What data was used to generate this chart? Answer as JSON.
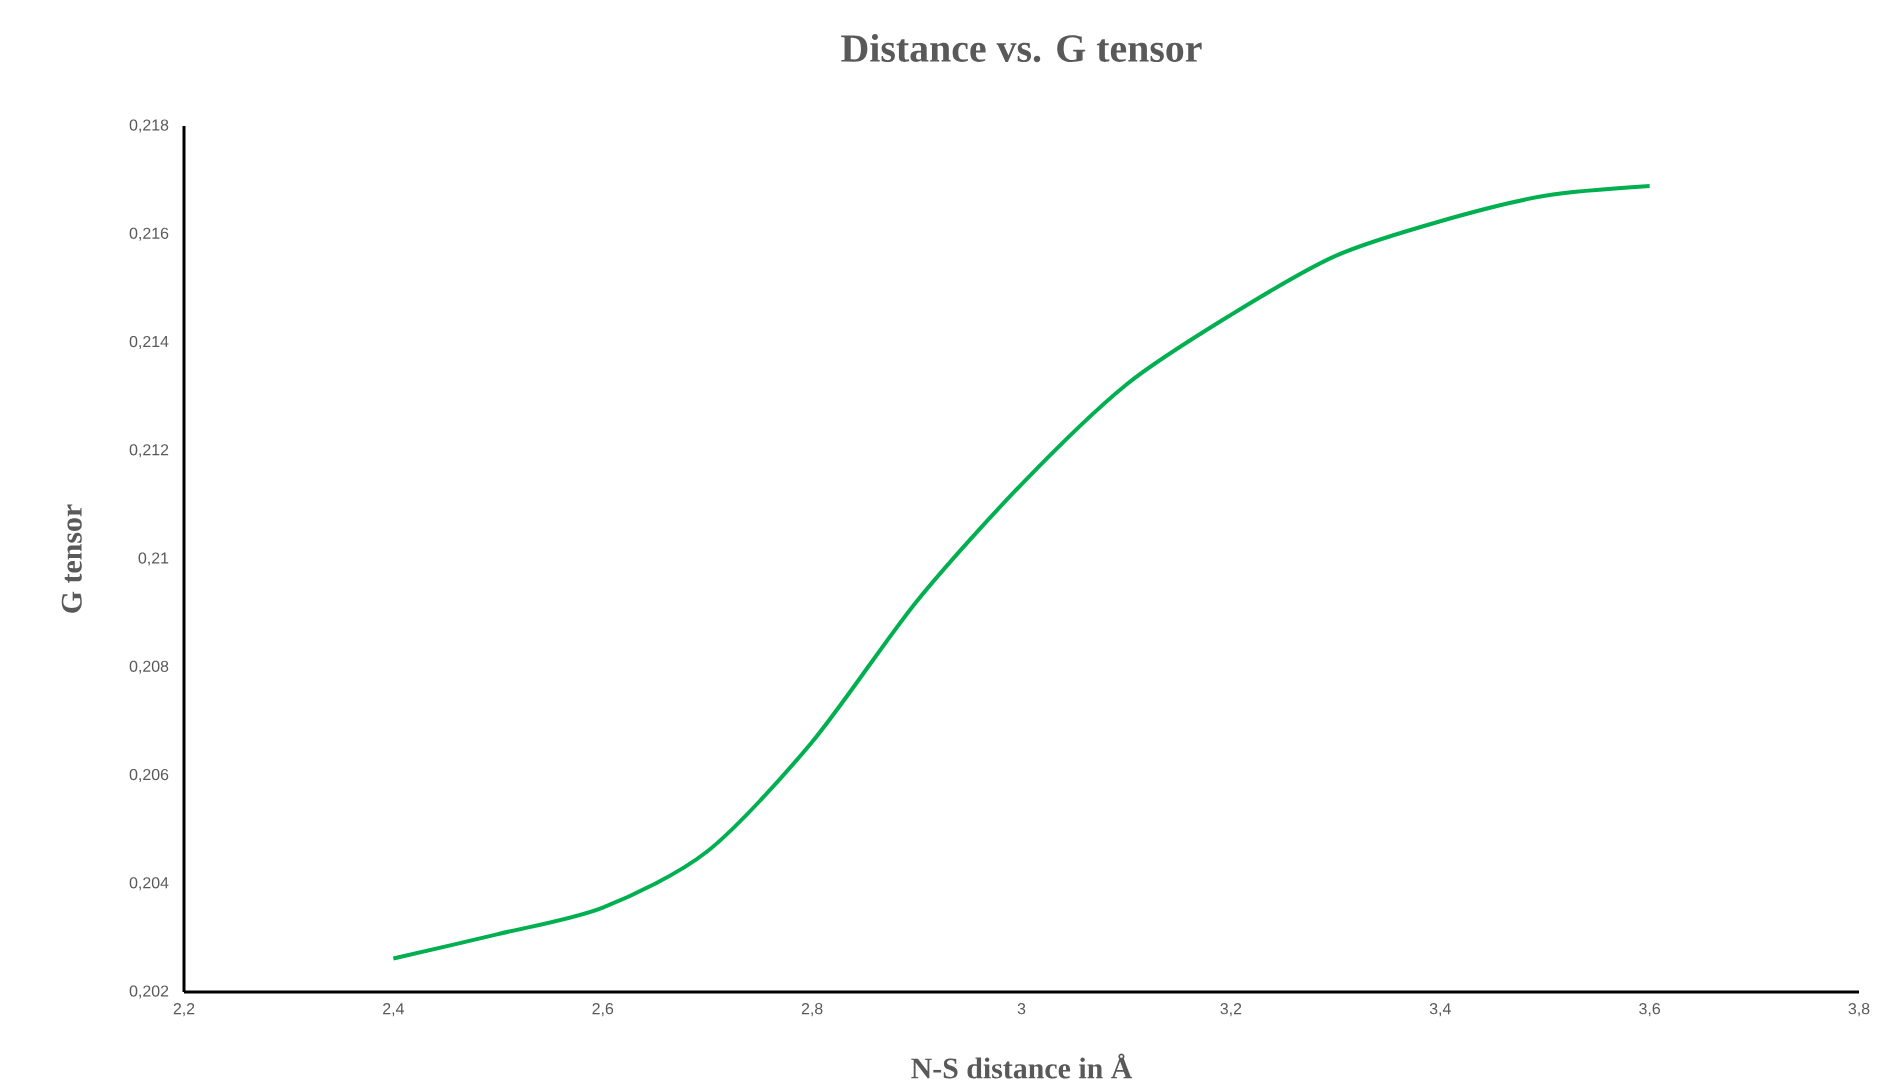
{
  "chart_data": {
    "type": "line",
    "title": "Distance vs. G tensor",
    "xlabel": "N-S distance in Å",
    "ylabel": "G tensor",
    "x": [
      2.4,
      2.5,
      2.6,
      2.7,
      2.8,
      2.9,
      3.0,
      3.1,
      3.2,
      3.3,
      3.4,
      3.5,
      3.6
    ],
    "series": [
      {
        "color": "#00b050",
        "values": [
          0.20262,
          0.20307,
          0.20356,
          0.2046,
          0.20662,
          0.20922,
          0.21138,
          0.21322,
          0.21451,
          0.2156,
          0.21624,
          0.21671,
          0.21689
        ]
      }
    ],
    "xlim": [
      2.2,
      3.8
    ],
    "xticks": [
      {
        "value": 2.2,
        "label": "2,2"
      },
      {
        "value": 2.4,
        "label": "2,4"
      },
      {
        "value": 2.6,
        "label": "2,6"
      },
      {
        "value": 2.8,
        "label": "2,8"
      },
      3,
      {
        "value": 3.2,
        "label": "3,2"
      },
      {
        "value": 3.4,
        "label": "3,4"
      },
      {
        "value": 3.6,
        "label": "3,6"
      },
      {
        "value": 3.8,
        "label": "3,8"
      }
    ],
    "ylim": [
      0.202,
      0.218
    ],
    "yticks": [
      {
        "value": 0.202,
        "label": "0,202"
      },
      {
        "value": 0.204,
        "label": "0,204"
      },
      {
        "value": 0.206,
        "label": "0,206"
      },
      {
        "value": 0.208,
        "label": "0,208"
      },
      {
        "value": 0.21,
        "label": "0,21"
      },
      {
        "value": 0.212,
        "label": "0,212"
      },
      {
        "value": 0.214,
        "label": "0,214"
      },
      {
        "value": 0.216,
        "label": "0,216"
      },
      {
        "value": 0.218,
        "label": "0,218"
      }
    ]
  }
}
